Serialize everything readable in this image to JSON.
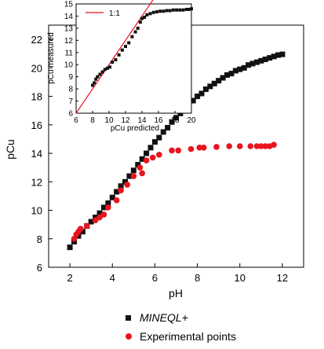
{
  "chart_data": [
    {
      "type": "scatter",
      "xlabel": "pH",
      "ylabel": "pCu",
      "xlim": [
        1,
        13
      ],
      "ylim": [
        6,
        23
      ],
      "xticks": [
        "2",
        "4",
        "6",
        "8",
        "10",
        "12"
      ],
      "yticks": [
        "6",
        "8",
        "10",
        "12",
        "14",
        "16",
        "18",
        "20",
        "22"
      ],
      "grid": false,
      "legend_position": "bottom",
      "series": [
        {
          "name": "MINEQL+",
          "marker": "square",
          "color": "#111111",
          "points": [
            [
              2.0,
              7.4
            ],
            [
              2.2,
              7.8
            ],
            [
              2.4,
              8.2
            ],
            [
              2.6,
              8.5
            ],
            [
              2.8,
              8.9
            ],
            [
              3.0,
              9.2
            ],
            [
              3.2,
              9.5
            ],
            [
              3.4,
              9.8
            ],
            [
              3.6,
              10.2
            ],
            [
              3.8,
              10.5
            ],
            [
              4.0,
              10.9
            ],
            [
              4.2,
              11.3
            ],
            [
              4.4,
              11.7
            ],
            [
              4.6,
              12.0
            ],
            [
              4.8,
              12.4
            ],
            [
              5.0,
              12.8
            ],
            [
              5.2,
              13.2
            ],
            [
              5.4,
              13.6
            ],
            [
              5.6,
              14.0
            ],
            [
              5.8,
              14.4
            ],
            [
              6.0,
              14.8
            ],
            [
              6.2,
              15.1
            ],
            [
              6.4,
              15.5
            ],
            [
              6.6,
              15.8
            ],
            [
              6.8,
              16.2
            ],
            [
              7.0,
              16.5
            ],
            [
              7.2,
              16.8
            ],
            [
              7.4,
              17.1
            ],
            [
              7.6,
              17.4
            ],
            [
              7.8,
              17.7
            ],
            [
              8.0,
              18.0
            ],
            [
              8.2,
              18.2
            ],
            [
              8.4,
              18.5
            ],
            [
              8.6,
              18.7
            ],
            [
              8.8,
              18.9
            ],
            [
              9.0,
              19.1
            ],
            [
              9.2,
              19.3
            ],
            [
              9.4,
              19.5
            ],
            [
              9.6,
              19.6
            ],
            [
              9.8,
              19.8
            ],
            [
              10.0,
              19.9
            ],
            [
              10.2,
              20.0
            ],
            [
              10.4,
              20.2
            ],
            [
              10.6,
              20.3
            ],
            [
              10.8,
              20.4
            ],
            [
              11.0,
              20.5
            ],
            [
              11.2,
              20.6
            ],
            [
              11.4,
              20.7
            ],
            [
              11.6,
              20.8
            ],
            [
              11.8,
              20.9
            ],
            [
              12.0,
              20.95
            ]
          ]
        },
        {
          "name": "Experimental points",
          "marker": "circle",
          "color": "#e8141e",
          "points": [
            [
              2.2,
              8.0
            ],
            [
              2.3,
              8.3
            ],
            [
              2.4,
              8.5
            ],
            [
              2.5,
              8.7
            ],
            [
              2.8,
              8.9
            ],
            [
              3.2,
              9.3
            ],
            [
              3.4,
              9.5
            ],
            [
              3.6,
              9.7
            ],
            [
              3.8,
              10.2
            ],
            [
              4.2,
              10.7
            ],
            [
              4.4,
              11.4
            ],
            [
              4.7,
              11.8
            ],
            [
              5.0,
              12.4
            ],
            [
              5.3,
              13.0
            ],
            [
              5.4,
              12.6
            ],
            [
              5.6,
              13.5
            ],
            [
              5.9,
              13.7
            ],
            [
              6.2,
              13.9
            ],
            [
              6.8,
              14.2
            ],
            [
              7.1,
              14.2
            ],
            [
              7.7,
              14.3
            ],
            [
              8.1,
              14.4
            ],
            [
              8.3,
              14.4
            ],
            [
              8.9,
              14.45
            ],
            [
              9.5,
              14.5
            ],
            [
              10.0,
              14.5
            ],
            [
              10.5,
              14.5
            ],
            [
              10.8,
              14.5
            ],
            [
              11.0,
              14.5
            ],
            [
              11.2,
              14.5
            ],
            [
              11.4,
              14.5
            ],
            [
              11.6,
              14.6
            ]
          ]
        }
      ]
    },
    {
      "type": "scatter",
      "xlabel": "pCu predicted",
      "ylabel": "pCu measured",
      "xlim": [
        6,
        20
      ],
      "ylim": [
        6,
        15
      ],
      "xticks": [
        "6",
        "8",
        "10",
        "12",
        "14",
        "16",
        "18",
        "20"
      ],
      "yticks": [
        "6",
        "7",
        "8",
        "9",
        "10",
        "11",
        "12",
        "13",
        "14",
        "15"
      ],
      "legend_position": "top-left",
      "reference_line": {
        "label": "1:1",
        "color": "#e8141e",
        "from": [
          6,
          6
        ],
        "to": [
          15.5,
          15.5
        ]
      },
      "series": [
        {
          "name": "",
          "marker": "square",
          "color": "#111111",
          "points": [
            [
              8.0,
              8.3
            ],
            [
              8.2,
              8.5
            ],
            [
              8.4,
              8.8
            ],
            [
              8.6,
              9.0
            ],
            [
              8.9,
              9.2
            ],
            [
              9.2,
              9.4
            ],
            [
              9.5,
              9.6
            ],
            [
              9.8,
              9.7
            ],
            [
              10.1,
              9.8
            ],
            [
              10.4,
              10.2
            ],
            [
              10.8,
              10.4
            ],
            [
              11.2,
              10.8
            ],
            [
              11.6,
              11.2
            ],
            [
              12.0,
              11.5
            ],
            [
              12.4,
              11.8
            ],
            [
              12.8,
              12.3
            ],
            [
              13.2,
              12.7
            ],
            [
              13.5,
              13.0
            ],
            [
              13.8,
              13.5
            ],
            [
              14.0,
              13.8
            ],
            [
              14.3,
              13.9
            ],
            [
              14.6,
              14.1
            ],
            [
              15.0,
              14.2
            ],
            [
              15.4,
              14.3
            ],
            [
              15.8,
              14.35
            ],
            [
              16.2,
              14.4
            ],
            [
              16.6,
              14.4
            ],
            [
              17.0,
              14.45
            ],
            [
              17.4,
              14.45
            ],
            [
              17.8,
              14.5
            ],
            [
              18.2,
              14.5
            ],
            [
              18.6,
              14.5
            ],
            [
              19.0,
              14.5
            ],
            [
              19.4,
              14.55
            ],
            [
              19.7,
              14.55
            ],
            [
              20.0,
              14.6
            ]
          ]
        }
      ]
    }
  ],
  "legend": {
    "items": [
      {
        "label": "MINEQL+"
      },
      {
        "label": "Experimental points"
      }
    ]
  }
}
